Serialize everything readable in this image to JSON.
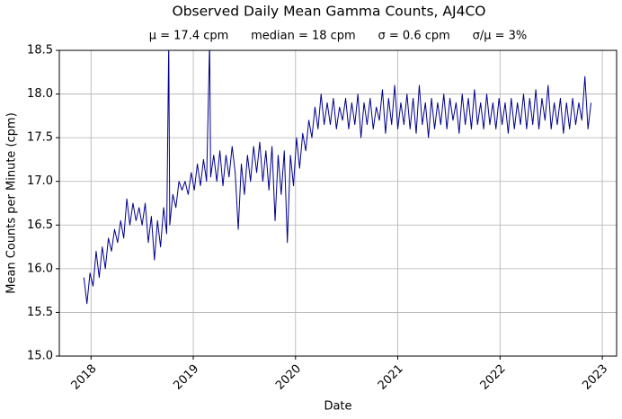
{
  "chart_data": {
    "type": "line",
    "title": "Observed Daily Mean Gamma Counts, AJ4CO",
    "subtitle": "μ = 17.4 cpm      median = 18 cpm      σ = 0.6 cpm      σ/μ = 3%",
    "xlabel": "Date",
    "ylabel": "Mean Counts per Minute (cpm)",
    "color": "#00008b",
    "grid": true,
    "xlim": [
      2017.69,
      2023.14
    ],
    "xticks": [
      2018,
      2019,
      2020,
      2021,
      2022,
      2023
    ],
    "ylim": [
      15,
      18.5
    ],
    "yticks": [
      {
        "value": 15,
        "label": "15.0"
      },
      15.5,
      {
        "value": 16,
        "label": "16.0"
      },
      16.5,
      {
        "value": 17,
        "label": "17.0"
      },
      17.5,
      {
        "value": 18,
        "label": "18.0"
      },
      18.5
    ],
    "x": [
      2017.93,
      2017.96,
      2017.99,
      2018.02,
      2018.05,
      2018.08,
      2018.11,
      2018.14,
      2018.17,
      2018.2,
      2018.23,
      2018.26,
      2018.29,
      2018.32,
      2018.35,
      2018.38,
      2018.41,
      2018.44,
      2018.47,
      2018.5,
      2018.53,
      2018.56,
      2018.59,
      2018.62,
      2018.65,
      2018.68,
      2018.71,
      2018.74,
      2018.76,
      2018.77,
      2018.8,
      2018.83,
      2018.86,
      2018.89,
      2018.92,
      2018.95,
      2018.98,
      2019.01,
      2019.04,
      2019.07,
      2019.1,
      2019.13,
      2019.16,
      2019.17,
      2019.2,
      2019.23,
      2019.26,
      2019.29,
      2019.32,
      2019.35,
      2019.38,
      2019.41,
      2019.44,
      2019.47,
      2019.5,
      2019.53,
      2019.56,
      2019.59,
      2019.62,
      2019.65,
      2019.68,
      2019.71,
      2019.74,
      2019.77,
      2019.8,
      2019.83,
      2019.86,
      2019.89,
      2019.92,
      2019.95,
      2019.98,
      2020.01,
      2020.04,
      2020.07,
      2020.1,
      2020.13,
      2020.16,
      2020.19,
      2020.22,
      2020.25,
      2020.28,
      2020.31,
      2020.34,
      2020.37,
      2020.4,
      2020.43,
      2020.46,
      2020.49,
      2020.52,
      2020.55,
      2020.58,
      2020.61,
      2020.64,
      2020.67,
      2020.7,
      2020.73,
      2020.76,
      2020.79,
      2020.82,
      2020.85,
      2020.88,
      2020.91,
      2020.94,
      2020.97,
      2021.0,
      2021.03,
      2021.06,
      2021.09,
      2021.12,
      2021.15,
      2021.18,
      2021.21,
      2021.24,
      2021.27,
      2021.3,
      2021.33,
      2021.36,
      2021.39,
      2021.42,
      2021.45,
      2021.48,
      2021.51,
      2021.54,
      2021.57,
      2021.6,
      2021.63,
      2021.66,
      2021.69,
      2021.72,
      2021.75,
      2021.78,
      2021.81,
      2021.84,
      2021.87,
      2021.9,
      2021.93,
      2021.96,
      2021.99,
      2022.02,
      2022.05,
      2022.08,
      2022.11,
      2022.14,
      2022.17,
      2022.2,
      2022.23,
      2022.26,
      2022.29,
      2022.32,
      2022.35,
      2022.38,
      2022.41,
      2022.44,
      2022.47,
      2022.5,
      2022.53,
      2022.56,
      2022.59,
      2022.62,
      2022.65,
      2022.68,
      2022.71,
      2022.74,
      2022.77,
      2022.8,
      2022.83,
      2022.86,
      2022.89
    ],
    "values": [
      15.9,
      15.6,
      15.95,
      15.8,
      16.2,
      15.9,
      16.25,
      16.0,
      16.35,
      16.2,
      16.45,
      16.3,
      16.55,
      16.35,
      16.8,
      16.5,
      16.75,
      16.55,
      16.7,
      16.5,
      16.75,
      16.3,
      16.6,
      16.1,
      16.55,
      16.25,
      16.7,
      16.4,
      18.6,
      16.5,
      16.85,
      16.7,
      17.0,
      16.9,
      17.0,
      16.85,
      17.1,
      16.9,
      17.2,
      16.95,
      17.25,
      17.0,
      18.6,
      17.05,
      17.3,
      17.0,
      17.35,
      16.95,
      17.3,
      17.05,
      17.4,
      17.1,
      16.45,
      17.2,
      16.85,
      17.3,
      17.0,
      17.4,
      17.1,
      17.45,
      17.0,
      17.35,
      16.9,
      17.4,
      16.55,
      17.3,
      16.85,
      17.35,
      16.3,
      17.3,
      16.95,
      17.5,
      17.15,
      17.55,
      17.35,
      17.7,
      17.5,
      17.85,
      17.6,
      18.0,
      17.65,
      17.9,
      17.65,
      17.95,
      17.6,
      17.85,
      17.7,
      17.95,
      17.6,
      17.9,
      17.65,
      18.0,
      17.5,
      17.9,
      17.65,
      17.95,
      17.6,
      17.85,
      17.7,
      18.05,
      17.55,
      17.95,
      17.65,
      18.1,
      17.6,
      17.9,
      17.65,
      18.0,
      17.6,
      17.95,
      17.55,
      18.1,
      17.65,
      17.9,
      17.5,
      17.95,
      17.6,
      17.9,
      17.65,
      18.0,
      17.6,
      17.95,
      17.7,
      17.9,
      17.55,
      18.0,
      17.65,
      17.95,
      17.6,
      18.05,
      17.65,
      17.9,
      17.6,
      18.0,
      17.65,
      17.9,
      17.6,
      17.95,
      17.65,
      17.9,
      17.55,
      17.95,
      17.6,
      17.9,
      17.65,
      18.0,
      17.6,
      17.95,
      17.65,
      18.05,
      17.6,
      17.95,
      17.7,
      18.1,
      17.6,
      17.9,
      17.65,
      17.95,
      17.55,
      17.9,
      17.6,
      17.95,
      17.65,
      17.9,
      17.7,
      18.2,
      17.6,
      17.9
    ]
  }
}
